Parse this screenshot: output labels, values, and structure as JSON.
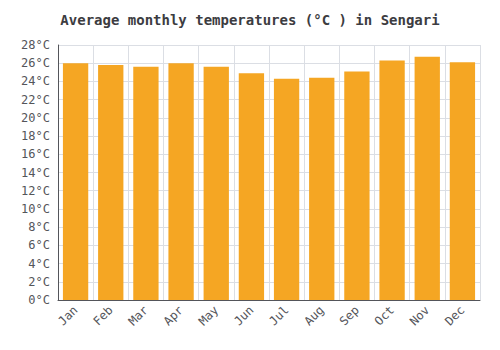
{
  "chart_data": {
    "type": "bar",
    "title": "Average monthly temperatures (°C ) in Sengari",
    "categories": [
      "Jan",
      "Feb",
      "Mar",
      "Apr",
      "May",
      "Jun",
      "Jul",
      "Aug",
      "Sep",
      "Oct",
      "Nov",
      "Dec"
    ],
    "values": [
      26.0,
      25.8,
      25.6,
      26.0,
      25.6,
      24.9,
      24.3,
      24.4,
      25.1,
      26.3,
      26.7,
      26.1
    ],
    "color": "#F5A623",
    "ylim": [
      0,
      28
    ],
    "yticks": [
      {
        "value": 0,
        "label": "0°C"
      },
      {
        "value": 2,
        "label": "2°C"
      },
      {
        "value": 4,
        "label": "4°C"
      },
      {
        "value": 6,
        "label": "6°C"
      },
      {
        "value": 8,
        "label": "8°C"
      },
      {
        "value": 10,
        "label": "10°C"
      },
      {
        "value": 12,
        "label": "12°C"
      },
      {
        "value": 14,
        "label": "14°C"
      },
      {
        "value": 16,
        "label": "16°C"
      },
      {
        "value": 18,
        "label": "18°C"
      },
      {
        "value": 20,
        "label": "20°C"
      },
      {
        "value": 22,
        "label": "22°C"
      },
      {
        "value": 24,
        "label": "24°C"
      },
      {
        "value": 26,
        "label": "26°C"
      },
      {
        "value": 28,
        "label": "28°C"
      }
    ],
    "grid": true
  }
}
